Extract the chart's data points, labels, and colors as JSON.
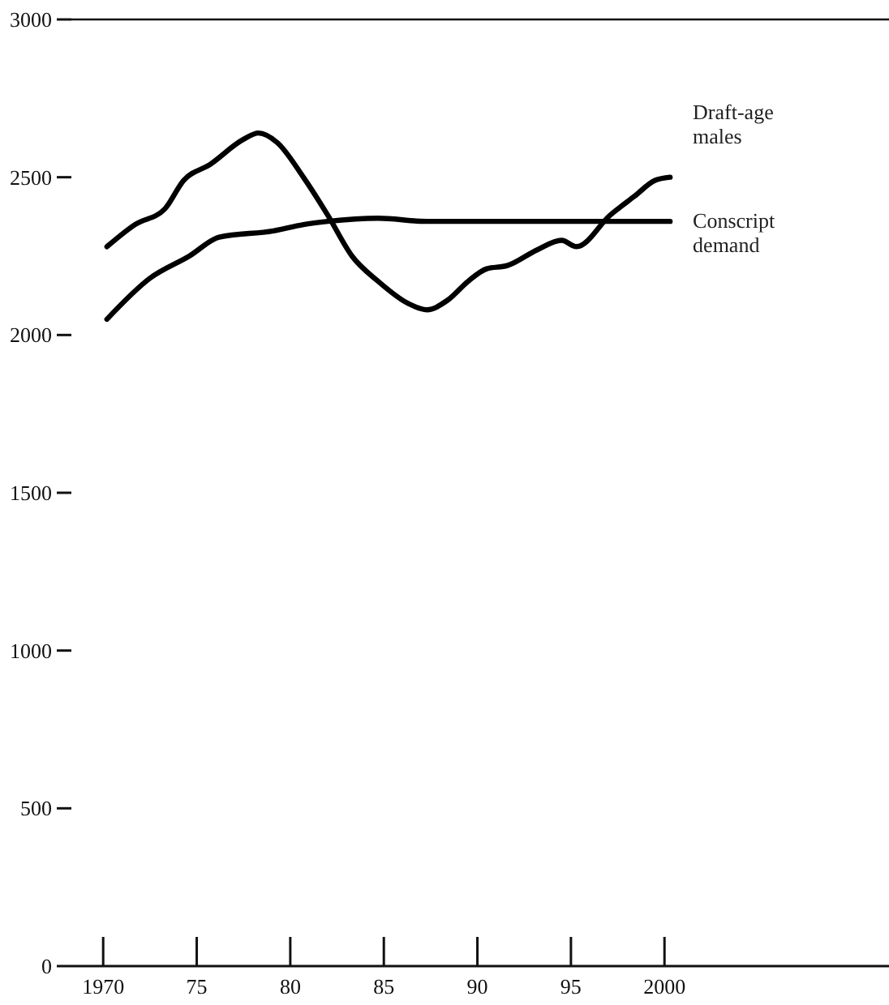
{
  "chart_data": {
    "type": "line",
    "x": [
      1970.2,
      1971.7,
      1973.3,
      1974.3,
      1975.7,
      1977.5,
      1978.3,
      1979.3,
      1980.7,
      1982.0,
      1983.3,
      1984.7,
      1986.3,
      1987.3,
      1988.4,
      1989.5,
      1990.5,
      1991.6,
      1993.2,
      1994.5,
      1995.3,
      1997.1,
      1998.4,
      1999.5,
      2000.3
    ],
    "series": [
      {
        "name": "Draft-age males",
        "color": "#000000",
        "values": [
          2280,
          2350,
          2400,
          2490,
          2540,
          2620,
          2640,
          2610,
          2500,
          2380,
          2250,
          2170,
          2100,
          2080,
          2110,
          2170,
          2210,
          2220,
          2270,
          2300,
          2280,
          2380,
          2440,
          2490,
          2500
        ]
      },
      {
        "name": "Conscript demand",
        "color": "#000000",
        "x": [
          1970.2,
          1972.5,
          1974.6,
          1976.2,
          1979.1,
          1980.7,
          1982.0,
          1984.7,
          1987.3,
          1994.2,
          2000.3
        ],
        "values": [
          2050,
          2180,
          2250,
          2310,
          2330,
          2350,
          2360,
          2370,
          2360,
          2360,
          2360
        ]
      }
    ],
    "xlim": [
      1968.3,
      2012
    ],
    "ylim": [
      0,
      3000
    ],
    "xticks": [
      {
        "value": 1970,
        "label": "1970"
      },
      {
        "value": 1975,
        "label": "75"
      },
      {
        "value": 1980,
        "label": "80"
      },
      {
        "value": 1985,
        "label": "85"
      },
      {
        "value": 1990,
        "label": "90"
      },
      {
        "value": 1995,
        "label": "95"
      },
      {
        "value": 2000,
        "label": "2000"
      }
    ],
    "yticks": [
      0,
      500,
      1000,
      1500,
      2000,
      2500,
      3000
    ],
    "grid": false,
    "legend": false,
    "marker": "none",
    "line_style": "solid"
  }
}
